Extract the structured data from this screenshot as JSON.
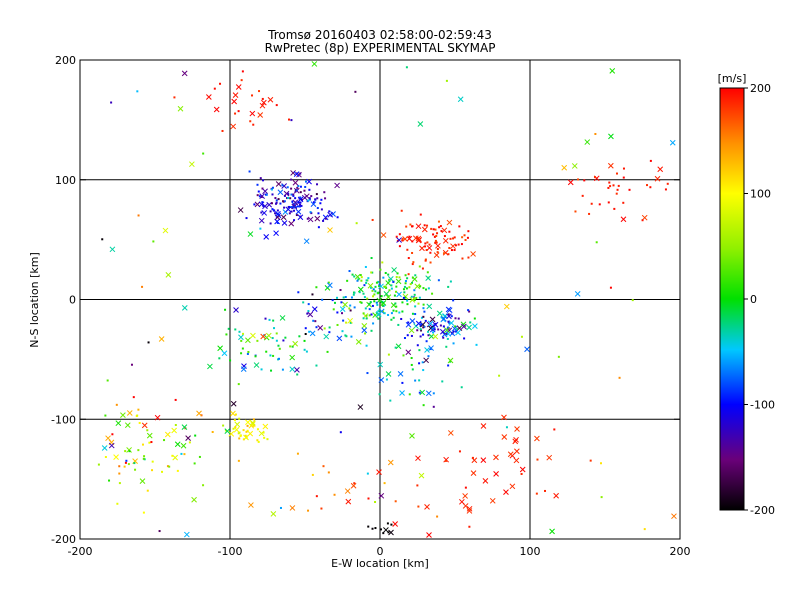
{
  "chart_data": {
    "type": "scatter",
    "title": "Tromsø 20160403 02:58:00-02:59:43",
    "subtitle": "RwPretec (8p) EXPERIMENTAL SKYMAP",
    "xlabel": "E-W location [km]",
    "ylabel": "N-S location [km]",
    "xlim": [
      -200,
      200
    ],
    "ylim": [
      -200,
      200
    ],
    "x_ticks": [
      -200,
      -100,
      0,
      100,
      200
    ],
    "y_ticks": [
      -200,
      -100,
      0,
      100,
      200
    ],
    "grid": true,
    "grid_lines": [
      -100,
      0,
      100
    ],
    "colorbar": {
      "label": "[m/s]",
      "range": [
        -200,
        200
      ],
      "ticks": [
        -200,
        -100,
        0,
        100,
        200
      ],
      "colormap": "rainbow (black-purple-blue-cyan-green-yellow-red)"
    },
    "markers": {
      "dot": "small points",
      "cross": "x markers"
    },
    "clusters": [
      {
        "x": -60,
        "y": 82,
        "spread": 14,
        "n": 160,
        "v_center": -110,
        "v_spread": 60,
        "cross_frac": 0.25
      },
      {
        "x": 5,
        "y": 5,
        "spread": 15,
        "n": 170,
        "v_center": 0,
        "v_spread": 80,
        "cross_frac": 0.15
      },
      {
        "x": 35,
        "y": 50,
        "spread": 14,
        "n": 90,
        "v_center": 190,
        "v_spread": 20,
        "cross_frac": 0.2
      },
      {
        "x": 40,
        "y": -20,
        "spread": 11,
        "n": 90,
        "v_center": -90,
        "v_spread": 90,
        "cross_frac": 0.3
      },
      {
        "x": -160,
        "y": -120,
        "spread": 25,
        "n": 80,
        "v_center": 80,
        "v_spread": 140,
        "cross_frac": 0.3
      },
      {
        "x": -90,
        "y": -110,
        "spread": 8,
        "n": 40,
        "v_center": 100,
        "v_spread": 30,
        "cross_frac": 0.4
      },
      {
        "x": 70,
        "y": -150,
        "spread": 25,
        "n": 45,
        "v_center": 190,
        "v_spread": 15,
        "cross_frac": 0.7
      },
      {
        "x": 160,
        "y": 92,
        "spread": 18,
        "n": 35,
        "v_center": 190,
        "v_spread": 20,
        "cross_frac": 0.3
      },
      {
        "x": -80,
        "y": -40,
        "spread": 18,
        "n": 60,
        "v_center": -20,
        "v_spread": 110,
        "cross_frac": 0.35
      },
      {
        "x": -30,
        "y": -15,
        "spread": 18,
        "n": 50,
        "v_center": -60,
        "v_spread": 110,
        "cross_frac": 0.3
      },
      {
        "x": -85,
        "y": 160,
        "spread": 14,
        "n": 25,
        "v_center": 190,
        "v_spread": 15,
        "cross_frac": 0.3
      },
      {
        "x": 20,
        "y": -60,
        "spread": 20,
        "n": 45,
        "v_center": -40,
        "v_spread": 110,
        "cross_frac": 0.3
      },
      {
        "x": -20,
        "y": -160,
        "spread": 22,
        "n": 20,
        "v_center": 150,
        "v_spread": 60,
        "cross_frac": 0.3
      },
      {
        "x": 0,
        "y": -190,
        "spread": 5,
        "n": 10,
        "v_center": -200,
        "v_spread": 5,
        "cross_frac": 0.2
      }
    ],
    "scattered": {
      "n": 90,
      "v_range": [
        -200,
        200
      ],
      "cross_frac": 0.5
    }
  }
}
